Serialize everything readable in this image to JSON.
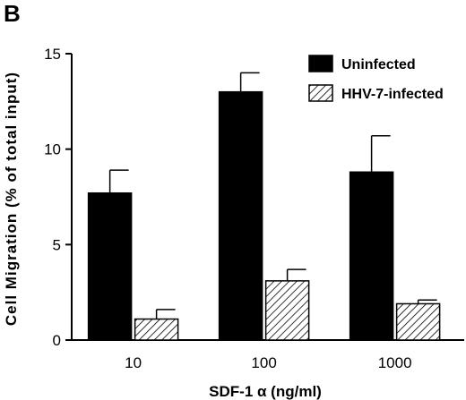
{
  "chart_data": {
    "type": "bar",
    "panel_label": "B",
    "title": "",
    "xlabel": "SDF-1 α   (ng/ml)",
    "ylabel": "Cell  Migration  (%  of  total  input)",
    "categories": [
      "10",
      "100",
      "1000"
    ],
    "ylim": [
      0,
      15
    ],
    "yticks": [
      0,
      5,
      10,
      15
    ],
    "legend_position": "top-right",
    "grid": false,
    "series": [
      {
        "name": "Uninfected",
        "fill": "solid",
        "color": "#000000",
        "values": [
          7.7,
          13.0,
          8.8
        ],
        "errors": [
          1.2,
          1.0,
          1.9
        ]
      },
      {
        "name": "HHV-7-infected",
        "fill": "hatched",
        "color": "#000000",
        "values": [
          1.1,
          3.1,
          1.9
        ],
        "errors": [
          0.5,
          0.6,
          0.2
        ]
      }
    ]
  }
}
